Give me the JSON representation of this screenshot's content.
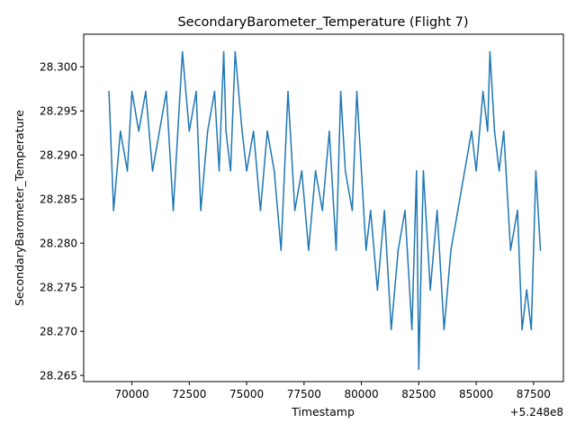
{
  "chart_data": {
    "type": "line",
    "title": "SecondaryBarometer_Temperature (Flight 7)",
    "xlabel": "Timestamp",
    "ylabel": "SecondaryBarometer_Temperature",
    "x_offset_label": "+5.248e8",
    "x_ticks": [
      "70000",
      "72500",
      "75000",
      "77500",
      "80000",
      "82500",
      "85000",
      "87500"
    ],
    "x_tick_values": [
      70000,
      72500,
      75000,
      77500,
      80000,
      82500,
      85000,
      87500
    ],
    "y_ticks": [
      "28.265",
      "28.270",
      "28.275",
      "28.280",
      "28.285",
      "28.290",
      "28.295",
      "28.300"
    ],
    "y_tick_values": [
      28.265,
      28.27,
      28.275,
      28.28,
      28.285,
      28.29,
      28.295,
      28.3
    ],
    "xlim": [
      67900,
      88800
    ],
    "ylim": [
      28.2643,
      28.3037
    ],
    "grid": false,
    "series": [
      {
        "color": "#1f77b4",
        "x": [
          69000,
          69200,
          69500,
          69800,
          70000,
          70300,
          70600,
          70900,
          71200,
          71500,
          71800,
          72000,
          72200,
          72500,
          72800,
          73000,
          73300,
          73600,
          73800,
          74000,
          74100,
          74300,
          74500,
          74800,
          75000,
          75300,
          75600,
          75900,
          76200,
          76500,
          76800,
          77100,
          77400,
          77700,
          78000,
          78300,
          78600,
          78900,
          79100,
          79300,
          79600,
          79800,
          80000,
          80200,
          80400,
          80700,
          81000,
          81300,
          81600,
          81900,
          82200,
          82400,
          82500,
          82700,
          83000,
          83300,
          83600,
          83900,
          84200,
          84500,
          84800,
          85000,
          85300,
          85500,
          85600,
          85800,
          86000,
          86200,
          86500,
          86800,
          87000,
          87200,
          87400,
          87600,
          87800
        ],
        "values": [
          28.2972,
          28.2837,
          28.2927,
          28.2882,
          28.2972,
          28.2927,
          28.2972,
          28.2882,
          28.2927,
          28.2972,
          28.2837,
          28.2927,
          28.3017,
          28.2927,
          28.2972,
          28.2837,
          28.2927,
          28.2972,
          28.2882,
          28.3017,
          28.2927,
          28.2882,
          28.3017,
          28.2927,
          28.2882,
          28.2927,
          28.2837,
          28.2927,
          28.2882,
          28.2792,
          28.2972,
          28.2837,
          28.2882,
          28.2792,
          28.2882,
          28.2837,
          28.2927,
          28.2792,
          28.2972,
          28.2882,
          28.2837,
          28.2972,
          28.2882,
          28.2792,
          28.2837,
          28.2747,
          28.2837,
          28.2702,
          28.2792,
          28.2837,
          28.2702,
          28.2882,
          28.2657,
          28.2882,
          28.2747,
          28.2837,
          28.2702,
          28.2792,
          28.2837,
          28.2882,
          28.2927,
          28.2882,
          28.2972,
          28.2927,
          28.3017,
          28.2927,
          28.2882,
          28.2927,
          28.2792,
          28.2837,
          28.2702,
          28.2747,
          28.2702,
          28.2882,
          28.2792
        ]
      }
    ]
  }
}
